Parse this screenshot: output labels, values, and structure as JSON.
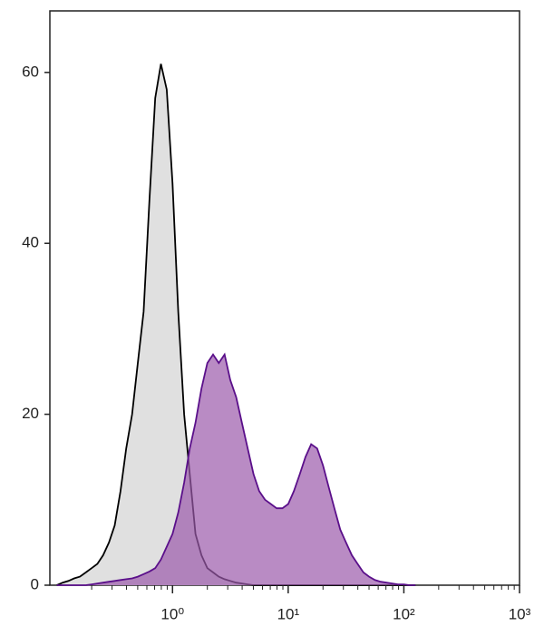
{
  "chart_data": {
    "type": "histogram-overlay",
    "x": [
      0.1,
      0.112,
      0.126,
      0.141,
      0.158,
      0.178,
      0.2,
      0.224,
      0.251,
      0.282,
      0.316,
      0.355,
      0.398,
      0.447,
      0.501,
      0.562,
      0.631,
      0.708,
      0.794,
      0.891,
      1,
      1.12,
      1.26,
      1.41,
      1.58,
      1.78,
      2,
      2.24,
      2.51,
      2.82,
      3.16,
      3.55,
      3.98,
      4.47,
      5.01,
      5.62,
      6.31,
      7.08,
      7.94,
      8.91,
      10,
      11.2,
      12.6,
      14.1,
      15.8,
      17.8,
      20,
      22.4,
      25.1,
      28.2,
      31.6,
      35.5,
      39.8,
      44.7,
      50.1,
      56.2,
      63.1,
      70.8,
      79.4,
      89.1,
      100,
      112,
      126
    ],
    "series": [
      {
        "color": "#000000",
        "fill": "#e0e0e0",
        "values": [
          0,
          0.3,
          0.5,
          0.8,
          1,
          1.5,
          2,
          2.5,
          3.5,
          5,
          7,
          11,
          16,
          20,
          26,
          32,
          45,
          57,
          61,
          58,
          47,
          32,
          20,
          13,
          6,
          3.5,
          2,
          1.5,
          1,
          0.7,
          0.5,
          0.3,
          0.2,
          0.1,
          0,
          0,
          0,
          0,
          0,
          0,
          0,
          0,
          0,
          0,
          0,
          0,
          0,
          0,
          0,
          0,
          0,
          0,
          0,
          0,
          0,
          0,
          0,
          0,
          0,
          0,
          0,
          0,
          0
        ]
      },
      {
        "color": "#5a0f8a",
        "fill": "#9b5aab",
        "values": [
          0,
          0,
          0,
          0,
          0,
          0,
          0.1,
          0.2,
          0.3,
          0.4,
          0.5,
          0.6,
          0.7,
          0.8,
          1,
          1.3,
          1.6,
          2,
          3,
          4.5,
          6,
          8.5,
          12,
          16,
          19,
          23,
          26,
          27,
          26,
          27,
          24,
          22,
          19,
          16,
          13,
          11,
          10,
          9.5,
          9,
          9,
          9.5,
          11,
          13,
          15,
          16.5,
          16,
          14,
          11.5,
          9,
          6.5,
          5,
          3.5,
          2.5,
          1.5,
          1,
          0.6,
          0.4,
          0.3,
          0.2,
          0.1,
          0.1,
          0,
          0
        ]
      }
    ],
    "xscale": "log",
    "xlim": [
      0.087,
      1000
    ],
    "xticks": [
      {
        "value": 1,
        "label": "10⁰"
      },
      {
        "value": 10,
        "label": "10¹"
      },
      {
        "value": 100,
        "label": "10²"
      },
      {
        "value": 1000,
        "label": "10³"
      }
    ],
    "xminorticks": [
      0.2,
      0.3,
      0.4,
      0.5,
      0.6,
      0.7,
      0.8,
      0.9,
      2,
      3,
      4,
      5,
      6,
      7,
      8,
      9,
      20,
      30,
      40,
      50,
      60,
      70,
      80,
      90,
      200,
      300,
      400,
      500,
      600,
      700,
      800,
      900
    ],
    "ylim": [
      0,
      67.2
    ],
    "yticks": [
      0,
      20,
      40,
      60
    ]
  }
}
